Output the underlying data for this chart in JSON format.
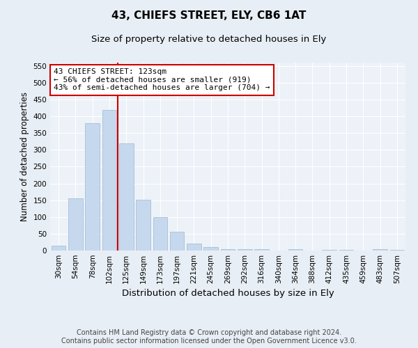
{
  "title": "43, CHIEFS STREET, ELY, CB6 1AT",
  "subtitle": "Size of property relative to detached houses in Ely",
  "xlabel": "Distribution of detached houses by size in Ely",
  "ylabel": "Number of detached properties",
  "footnote": "Contains HM Land Registry data © Crown copyright and database right 2024.\nContains public sector information licensed under the Open Government Licence v3.0.",
  "categories": [
    "30sqm",
    "54sqm",
    "78sqm",
    "102sqm",
    "125sqm",
    "149sqm",
    "173sqm",
    "197sqm",
    "221sqm",
    "245sqm",
    "269sqm",
    "292sqm",
    "316sqm",
    "340sqm",
    "364sqm",
    "388sqm",
    "412sqm",
    "435sqm",
    "459sqm",
    "483sqm",
    "507sqm"
  ],
  "values": [
    15,
    155,
    380,
    420,
    320,
    152,
    100,
    55,
    20,
    10,
    5,
    4,
    5,
    1,
    4,
    1,
    3,
    2,
    1,
    5,
    3
  ],
  "bar_color": "#c5d8ed",
  "bar_edge_color": "#9db8d0",
  "vline_color": "#cc0000",
  "vline_x": 3.5,
  "annotation_text": "43 CHIEFS STREET: 123sqm\n← 56% of detached houses are smaller (919)\n43% of semi-detached houses are larger (704) →",
  "annotation_box_color": "white",
  "annotation_border_color": "#cc0000",
  "ylim": [
    0,
    560
  ],
  "yticks": [
    0,
    50,
    100,
    150,
    200,
    250,
    300,
    350,
    400,
    450,
    500,
    550
  ],
  "bg_color": "#e8eef5",
  "plot_bg_color": "#edf2f8",
  "title_fontsize": 11,
  "subtitle_fontsize": 9.5,
  "xlabel_fontsize": 9.5,
  "ylabel_fontsize": 8.5,
  "tick_fontsize": 7.5,
  "annotation_fontsize": 8,
  "footnote_fontsize": 7
}
